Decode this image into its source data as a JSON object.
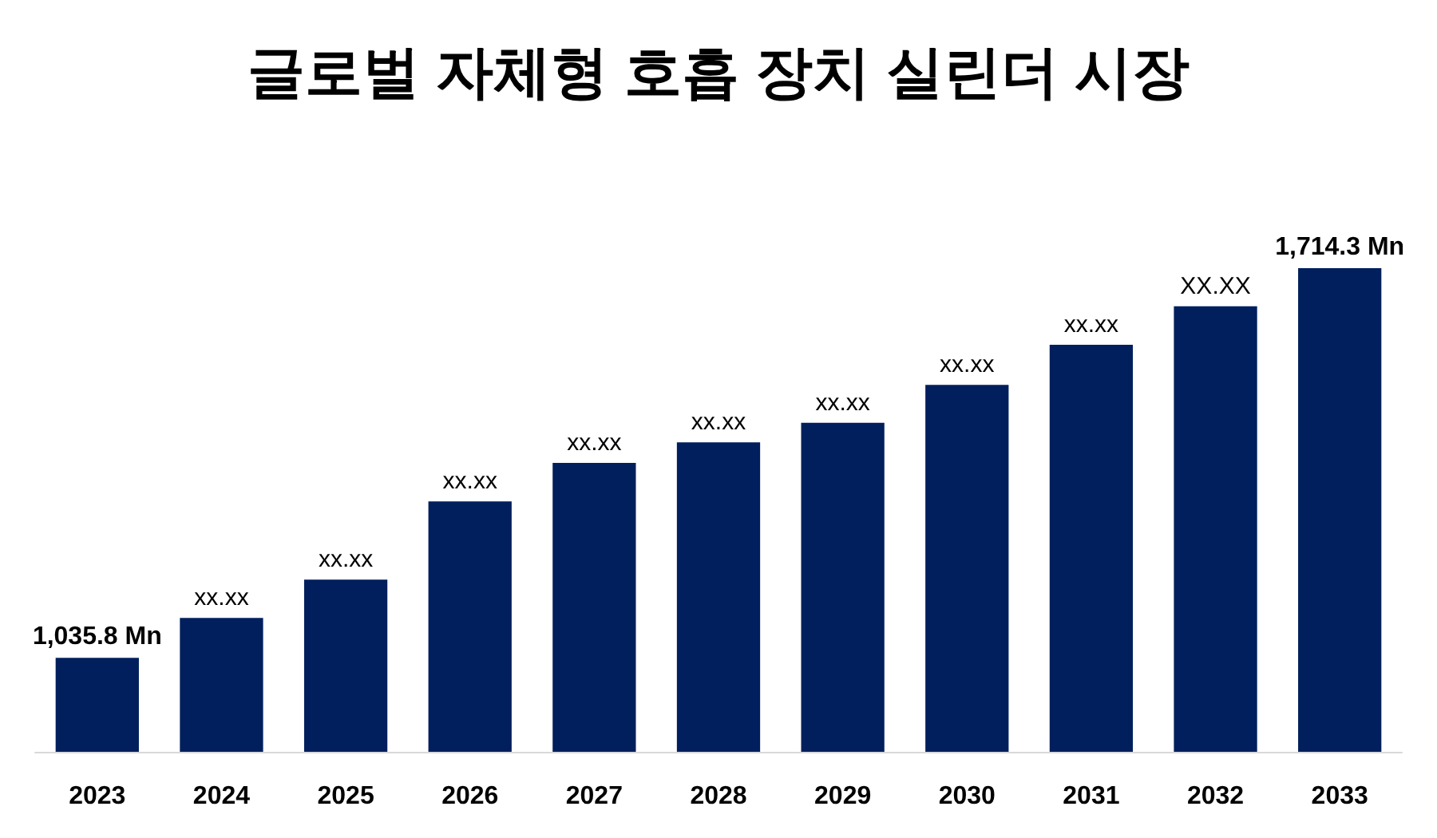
{
  "chart_data": {
    "type": "bar",
    "title": "글로벌 자체형 호흡 장치 실린더 시장",
    "categories": [
      "2023",
      "2024",
      "2025",
      "2026",
      "2027",
      "2028",
      "2029",
      "2030",
      "2031",
      "2032",
      "2033"
    ],
    "values": [
      1035.8,
      1105,
      1172,
      1308,
      1375,
      1411,
      1445,
      1511,
      1581,
      1648,
      1714.3
    ],
    "value_labels": [
      "1,035.8 Mn",
      "xx.xx",
      "xx.xx",
      "xx.xx",
      "xx.xx",
      "xx.xx",
      "xx.xx",
      "xx.xx",
      "xx.xx",
      "XX.XX",
      "1,714.3 Mn"
    ],
    "ylim": [
      872,
      1714.3
    ],
    "tick_labels": "x",
    "color": "#001f5c"
  }
}
